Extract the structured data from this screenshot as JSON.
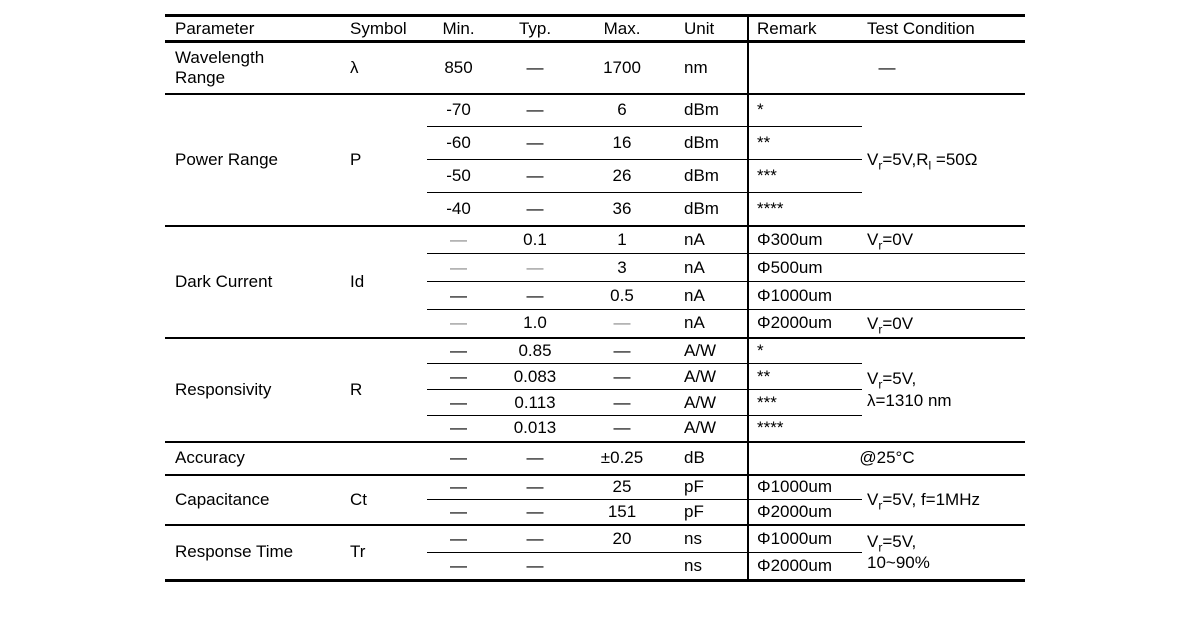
{
  "colors": {
    "text": "#000000",
    "border": "#000000",
    "muted_dash": "#8a8a8a",
    "background": "#ffffff"
  },
  "header": {
    "parameter": "Parameter",
    "symbol": "Symbol",
    "min": "Min.",
    "typ": "Typ.",
    "max": "Max.",
    "unit": "Unit",
    "remark": "Remark",
    "test_condition": "Test Condition"
  },
  "rows": {
    "wavelength": {
      "param": "Wavelength\nRange",
      "symbol": "λ",
      "min": "850",
      "typ": "—",
      "max": "1700",
      "unit": "nm",
      "cond": "—"
    },
    "power": {
      "param": "Power Range",
      "symbol": "P",
      "cond": "V_{r}=5V,R_{l} =50Ω",
      "sub": [
        {
          "min": "-70",
          "typ": "—",
          "max": "6",
          "unit": "dBm",
          "remark": "*"
        },
        {
          "min": "-60",
          "typ": "—",
          "max": "16",
          "unit": "dBm",
          "remark": "**"
        },
        {
          "min": "-50",
          "typ": "—",
          "max": "26",
          "unit": "dBm",
          "remark": "***"
        },
        {
          "min": "-40",
          "typ": "—",
          "max": "36",
          "unit": "dBm",
          "remark": "****"
        }
      ]
    },
    "dark": {
      "param": "Dark Current",
      "symbol": "Id",
      "sub": [
        {
          "min": "—",
          "typ": "0.1",
          "max": "1",
          "unit": "nA",
          "remark": "Φ300um",
          "cond": "V_{r}=0V"
        },
        {
          "min": "—",
          "typ": "—",
          "max": "3",
          "unit": "nA",
          "remark": "Φ500um",
          "cond": ""
        },
        {
          "min": "—",
          "typ": "—",
          "max": "0.5",
          "unit": "nA",
          "remark": "Φ1000um",
          "cond": ""
        },
        {
          "min": "—",
          "typ": "1.0",
          "max": "—",
          "unit": "nA",
          "remark": "Φ2000um",
          "cond": "V_{r}=0V"
        }
      ]
    },
    "responsivity": {
      "param": "Responsivity",
      "symbol": "R",
      "cond": "V_{r}=5V,\nλ=1310 nm",
      "sub": [
        {
          "min": "—",
          "typ": "0.85",
          "max": "—",
          "unit": "A/W",
          "remark": "*"
        },
        {
          "min": "—",
          "typ": "0.083",
          "max": "—",
          "unit": "A/W",
          "remark": "**"
        },
        {
          "min": "—",
          "typ": "0.113",
          "max": "—",
          "unit": "A/W",
          "remark": "***"
        },
        {
          "min": "—",
          "typ": "0.013",
          "max": "—",
          "unit": "A/W",
          "remark": "****"
        }
      ]
    },
    "accuracy": {
      "param": "Accuracy",
      "symbol": "",
      "min": "—",
      "typ": "—",
      "max": "±0.25",
      "unit": "dB",
      "cond": "@25°C"
    },
    "capacitance": {
      "param": "Capacitance",
      "symbol": "Ct",
      "cond": "V_{r}=5V, f=1MHz",
      "sub": [
        {
          "min": "—",
          "typ": "—",
          "max": "25",
          "unit": "pF",
          "remark": "Φ1000um"
        },
        {
          "min": "—",
          "typ": "—",
          "max": "151",
          "unit": "pF",
          "remark": "Φ2000um"
        }
      ]
    },
    "response_time": {
      "param": "Response Time",
      "symbol": "Tr",
      "cond": "V_{r}=5V,\n10~90%",
      "sub": [
        {
          "min": "—",
          "typ": "—",
          "max": "20",
          "unit": "ns",
          "remark": "Φ1000um"
        },
        {
          "min": "—",
          "typ": "—",
          "max": "",
          "unit": "ns",
          "remark": "Φ2000um"
        }
      ]
    }
  }
}
